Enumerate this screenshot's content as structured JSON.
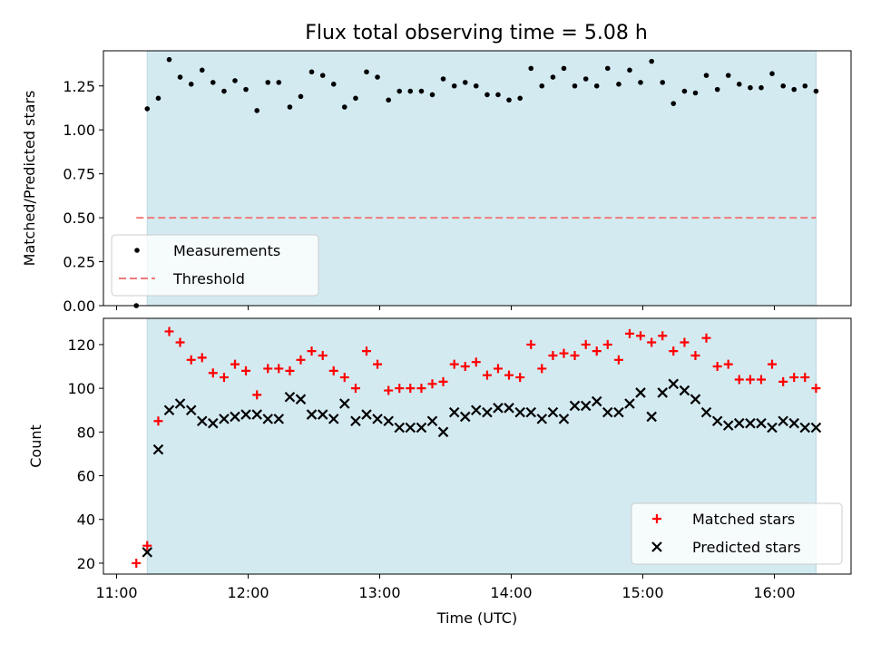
{
  "title": "Flux total observing time = 5.08 h",
  "colors": {
    "observing_band": "#d3eaf1",
    "band_edge": "#b8d8e2",
    "measurement": "#000000",
    "threshold": "#f07a7a",
    "matched": "#ff0000",
    "predicted": "#000000"
  },
  "chart_data": [
    {
      "type": "scatter",
      "ylabel": "Matched/Predicted stars",
      "xlabel": "",
      "ylim": [
        0,
        1.45
      ],
      "yticks": [
        "0.00",
        "0.25",
        "0.50",
        "0.75",
        "1.00",
        "1.25"
      ],
      "ytick_values": [
        0,
        0.25,
        0.5,
        0.75,
        1.0,
        1.25
      ],
      "legend_position": "lower-left",
      "observing_band_hours": [
        11.233,
        16.317
      ],
      "series": [
        {
          "name": "Measurements",
          "marker": "dot",
          "x": [
            11.15,
            11.233,
            11.317,
            11.4,
            11.483,
            11.567,
            11.65,
            11.733,
            11.817,
            11.9,
            11.983,
            12.067,
            12.15,
            12.233,
            12.317,
            12.4,
            12.483,
            12.567,
            12.65,
            12.733,
            12.817,
            12.9,
            12.983,
            13.067,
            13.15,
            13.233,
            13.317,
            13.4,
            13.483,
            13.567,
            13.65,
            13.733,
            13.817,
            13.9,
            13.983,
            14.067,
            14.15,
            14.233,
            14.317,
            14.4,
            14.483,
            14.567,
            14.65,
            14.733,
            14.817,
            14.9,
            14.983,
            15.067,
            15.15,
            15.233,
            15.317,
            15.4,
            15.483,
            15.567,
            15.65,
            15.733,
            15.817,
            15.9,
            15.983,
            16.067,
            16.15,
            16.233,
            16.317
          ],
          "y": [
            0.0,
            1.12,
            1.18,
            1.4,
            1.3,
            1.26,
            1.34,
            1.27,
            1.22,
            1.28,
            1.23,
            1.11,
            1.27,
            1.27,
            1.13,
            1.19,
            1.33,
            1.31,
            1.26,
            1.13,
            1.18,
            1.33,
            1.3,
            1.17,
            1.22,
            1.22,
            1.22,
            1.2,
            1.29,
            1.25,
            1.27,
            1.25,
            1.2,
            1.2,
            1.17,
            1.18,
            1.35,
            1.25,
            1.3,
            1.35,
            1.25,
            1.29,
            1.25,
            1.35,
            1.26,
            1.34,
            1.27,
            1.39,
            1.27,
            1.15,
            1.22,
            1.21,
            1.31,
            1.23,
            1.31,
            1.26,
            1.24,
            1.24,
            1.32,
            1.25,
            1.23,
            1.25,
            1.22
          ]
        },
        {
          "name": "Threshold",
          "marker": "dashed-line",
          "x": [
            11.15,
            16.317
          ],
          "y": [
            0.5,
            0.5
          ]
        }
      ]
    },
    {
      "type": "scatter",
      "ylabel": "Count",
      "xlabel": "Time (UTC)",
      "ylim": [
        15,
        132
      ],
      "yticks": [
        "20",
        "40",
        "60",
        "80",
        "100",
        "120"
      ],
      "ytick_values": [
        20,
        40,
        60,
        80,
        100,
        120
      ],
      "xlim": [
        10.9,
        16.583
      ],
      "xticks": [
        "11:00",
        "12:00",
        "13:00",
        "14:00",
        "15:00",
        "16:00"
      ],
      "xtick_values": [
        11,
        12,
        13,
        14,
        15,
        16
      ],
      "legend_position": "lower-right",
      "observing_band_hours": [
        11.233,
        16.317
      ],
      "series": [
        {
          "name": "Matched stars",
          "marker": "plus",
          "x": [
            11.15,
            11.233,
            11.317,
            11.4,
            11.483,
            11.567,
            11.65,
            11.733,
            11.817,
            11.9,
            11.983,
            12.067,
            12.15,
            12.233,
            12.317,
            12.4,
            12.483,
            12.567,
            12.65,
            12.733,
            12.817,
            12.9,
            12.983,
            13.067,
            13.15,
            13.233,
            13.317,
            13.4,
            13.483,
            13.567,
            13.65,
            13.733,
            13.817,
            13.9,
            13.983,
            14.067,
            14.15,
            14.233,
            14.317,
            14.4,
            14.483,
            14.567,
            14.65,
            14.733,
            14.817,
            14.9,
            14.983,
            15.067,
            15.15,
            15.233,
            15.317,
            15.4,
            15.483,
            15.567,
            15.65,
            15.733,
            15.817,
            15.9,
            15.983,
            16.067,
            16.15,
            16.233,
            16.317
          ],
          "y": [
            20,
            28,
            85,
            126,
            121,
            113,
            114,
            107,
            105,
            111,
            108,
            97,
            109,
            109,
            108,
            113,
            117,
            115,
            108,
            105,
            100,
            117,
            111,
            99,
            100,
            100,
            100,
            102,
            103,
            111,
            110,
            112,
            106,
            109,
            106,
            105,
            120,
            109,
            115,
            116,
            115,
            120,
            117,
            120,
            113,
            125,
            124,
            121,
            124,
            117,
            121,
            115,
            123,
            110,
            111,
            104,
            104,
            104,
            111,
            103,
            105,
            105,
            100
          ]
        },
        {
          "name": "Predicted stars",
          "marker": "x",
          "x": [
            11.233,
            11.317,
            11.4,
            11.483,
            11.567,
            11.65,
            11.733,
            11.817,
            11.9,
            11.983,
            12.067,
            12.15,
            12.233,
            12.317,
            12.4,
            12.483,
            12.567,
            12.65,
            12.733,
            12.817,
            12.9,
            12.983,
            13.067,
            13.15,
            13.233,
            13.317,
            13.4,
            13.483,
            13.567,
            13.65,
            13.733,
            13.817,
            13.9,
            13.983,
            14.067,
            14.15,
            14.233,
            14.317,
            14.4,
            14.483,
            14.567,
            14.65,
            14.733,
            14.817,
            14.9,
            14.983,
            15.067,
            15.15,
            15.233,
            15.317,
            15.4,
            15.483,
            15.567,
            15.65,
            15.733,
            15.817,
            15.9,
            15.983,
            16.067,
            16.15,
            16.233,
            16.317
          ],
          "y": [
            25,
            72,
            90,
            93,
            90,
            85,
            84,
            86,
            87,
            88,
            88,
            86,
            86,
            96,
            95,
            88,
            88,
            86,
            93,
            85,
            88,
            86,
            85,
            82,
            82,
            82,
            85,
            80,
            89,
            87,
            90,
            89,
            91,
            91,
            89,
            89,
            86,
            89,
            86,
            92,
            92,
            94,
            89,
            89,
            93,
            98,
            87,
            98,
            102,
            99,
            95,
            89,
            85,
            83,
            84,
            84,
            84,
            82,
            85,
            84,
            82,
            82
          ]
        }
      ]
    }
  ]
}
